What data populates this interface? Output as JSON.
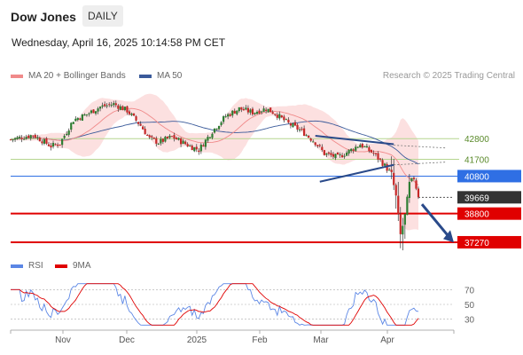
{
  "header": {
    "title": "Dow Jones",
    "timeframe": "DAILY",
    "timestamp": "Wednesday, April 16, 2025 10:14:58 PM CET",
    "research": "Research © 2025 Trading Central"
  },
  "legend": {
    "ma20": "MA 20 + Bollinger Bands",
    "ma50": "MA 50",
    "rsi": "RSI",
    "ma9": "9MA"
  },
  "colors": {
    "up": "#2e7d32",
    "down": "#c62828",
    "band": "#fbd5d5",
    "ma20": "#f08a8a",
    "ma50": "#3a5a9a",
    "green_level": "#b5d58f",
    "blue_level": "#2f6fe4",
    "red_level": "#e00000",
    "current": "#333333",
    "trend": "#2a4a8a",
    "rsi": "#5b86e5",
    "rsi_ma": "#e00000"
  },
  "chart_data": [
    {
      "type": "candlestick",
      "ylim": [
        36700,
        45700
      ],
      "x_ticks": [
        "Nov",
        "Dec",
        "2025",
        "Feb",
        "Mar",
        "Apr"
      ],
      "levels": [
        {
          "value": 42800,
          "label": "42800",
          "kind": "resistance"
        },
        {
          "value": 41700,
          "label": "41700",
          "kind": "resistance"
        },
        {
          "value": 40800,
          "label": "40800",
          "kind": "pivot"
        },
        {
          "value": 39669,
          "label": "39669",
          "kind": "last"
        },
        {
          "value": 38800,
          "label": "38800",
          "kind": "support"
        },
        {
          "value": 37270,
          "label": "37270",
          "kind": "support"
        }
      ]
    },
    {
      "type": "line",
      "series": [
        {
          "name": "RSI"
        },
        {
          "name": "9MA"
        }
      ],
      "ylim": [
        20,
        80
      ],
      "y_ticks": [
        "70",
        "50",
        "30"
      ]
    }
  ]
}
